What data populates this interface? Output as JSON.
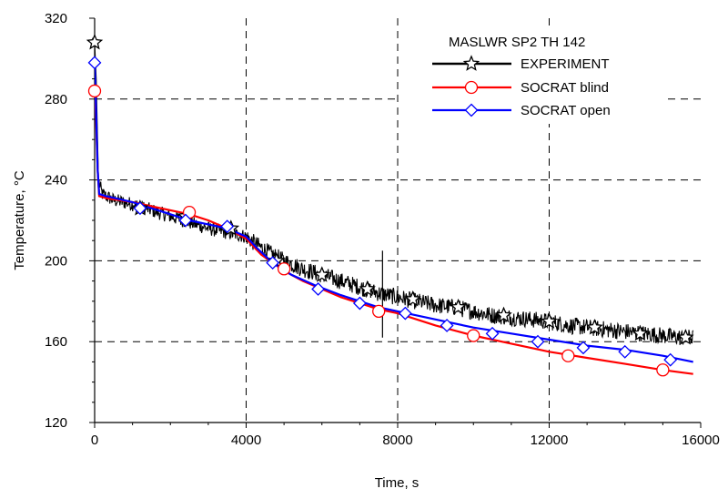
{
  "chart_data": {
    "type": "line",
    "title": "MASLWR SP2 TH 142",
    "xlabel": "Time, s",
    "ylabel": "Temperature, °C",
    "xlim": [
      0,
      16000
    ],
    "ylim": [
      120,
      320
    ],
    "x_ticks": [
      "0",
      "4000",
      "8000",
      "12000",
      "16000"
    ],
    "y_ticks": [
      "120",
      "160",
      "200",
      "240",
      "280",
      "320"
    ],
    "grid": true,
    "grid_style": "dashed",
    "legend_position": "top-right",
    "series": [
      {
        "name": "EXPERIMENT",
        "color": "#000000",
        "marker": "star",
        "noisy": true,
        "x": [
          0,
          40,
          100,
          200,
          500,
          1000,
          1500,
          2000,
          2500,
          3000,
          3500,
          4000,
          4200,
          4600,
          5000,
          5500,
          6000,
          6500,
          7000,
          7500,
          8000,
          8500,
          9000,
          9500,
          10000,
          10500,
          11000,
          11500,
          12000,
          12500,
          13000,
          13500,
          14000,
          14500,
          15000,
          15500,
          15800
        ],
        "y": [
          308,
          290,
          240,
          233,
          230,
          228,
          225,
          222,
          219,
          216,
          214,
          212,
          209,
          204,
          200,
          196,
          193,
          190,
          187,
          184,
          182,
          180,
          178,
          177,
          175,
          173,
          172,
          171,
          170,
          168,
          167,
          166,
          165,
          164,
          163,
          162,
          162
        ],
        "marker_x": [
          0,
          1200,
          2400,
          3600,
          4800,
          6000,
          7200,
          8400,
          9600,
          10800,
          12000,
          13200,
          14400,
          15600
        ],
        "marker_y": [
          308,
          226,
          222,
          216,
          200,
          193,
          186,
          181,
          177,
          173,
          170,
          167,
          164,
          162
        ]
      },
      {
        "name": "SOCRAT blind",
        "color": "#ff0000",
        "marker": "circle",
        "x": [
          0,
          30,
          80,
          120,
          300,
          1000,
          1500,
          2000,
          2500,
          3000,
          3500,
          4000,
          4400,
          5000,
          5500,
          6000,
          6500,
          7000,
          7500,
          8000,
          9000,
          10000,
          11000,
          12000,
          13000,
          14000,
          15000,
          15800
        ],
        "y": [
          285,
          275,
          245,
          232,
          231,
          229,
          227,
          225,
          223,
          220,
          216,
          211,
          203,
          195,
          190,
          186,
          182,
          179,
          176,
          174,
          168,
          163,
          159,
          155,
          152,
          149,
          146,
          144
        ],
        "marker_x": [
          0,
          2500,
          5000,
          7500,
          10000,
          12500,
          15000
        ],
        "marker_y": [
          284,
          224,
          196,
          175,
          163,
          153,
          146
        ]
      },
      {
        "name": "SOCRAT open",
        "color": "#0000ff",
        "marker": "diamond",
        "x": [
          0,
          30,
          80,
          120,
          300,
          1000,
          1500,
          2000,
          2500,
          3000,
          3500,
          4000,
          4300,
          4700,
          5200,
          5800,
          6500,
          7000,
          7500,
          8000,
          9000,
          10000,
          11000,
          12000,
          13000,
          14000,
          15000,
          15800
        ],
        "y": [
          298,
          280,
          245,
          233,
          232,
          229,
          226,
          223,
          220,
          218,
          216,
          212,
          206,
          199,
          193,
          188,
          183,
          180,
          177,
          175,
          171,
          167,
          164,
          161,
          158,
          156,
          153,
          150
        ],
        "marker_x": [
          0,
          1200,
          2400,
          3500,
          4700,
          5900,
          7000,
          8200,
          9300,
          10500,
          11700,
          12900,
          14000,
          15200
        ],
        "marker_y": [
          298,
          226,
          220,
          217,
          199,
          186,
          179,
          174,
          168,
          164,
          160,
          157,
          155,
          151
        ]
      }
    ]
  }
}
